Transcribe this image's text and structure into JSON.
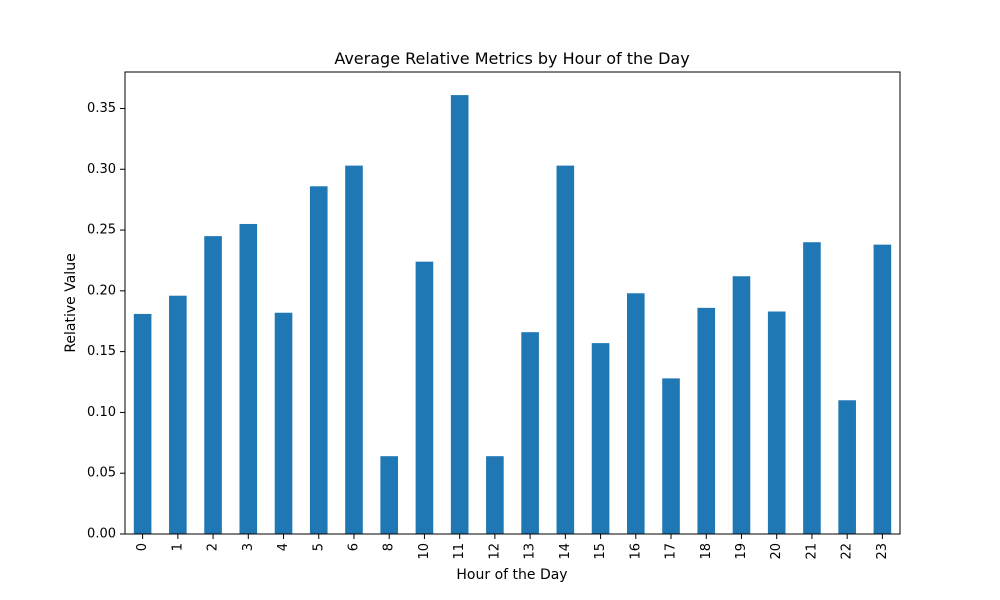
{
  "chart_data": {
    "type": "bar",
    "title": "Average Relative Metrics by Hour of the Day",
    "xlabel": "Hour of the Day",
    "ylabel": "Relative Value",
    "ylim": [
      0,
      0.38
    ],
    "yticks": [
      "0.00",
      "0.05",
      "0.10",
      "0.15",
      "0.20",
      "0.25",
      "0.30",
      "0.35"
    ],
    "categories": [
      "0",
      "1",
      "2",
      "3",
      "4",
      "5",
      "6",
      "8",
      "10",
      "11",
      "12",
      "13",
      "14",
      "15",
      "16",
      "17",
      "18",
      "19",
      "20",
      "21",
      "22",
      "23"
    ],
    "values": [
      0.181,
      0.196,
      0.245,
      0.255,
      0.182,
      0.286,
      0.303,
      0.064,
      0.224,
      0.361,
      0.064,
      0.166,
      0.303,
      0.157,
      0.198,
      0.128,
      0.186,
      0.212,
      0.183,
      0.24,
      0.11,
      0.238
    ],
    "bar_color": "#1f77b4",
    "grid": false,
    "legend": "none"
  }
}
